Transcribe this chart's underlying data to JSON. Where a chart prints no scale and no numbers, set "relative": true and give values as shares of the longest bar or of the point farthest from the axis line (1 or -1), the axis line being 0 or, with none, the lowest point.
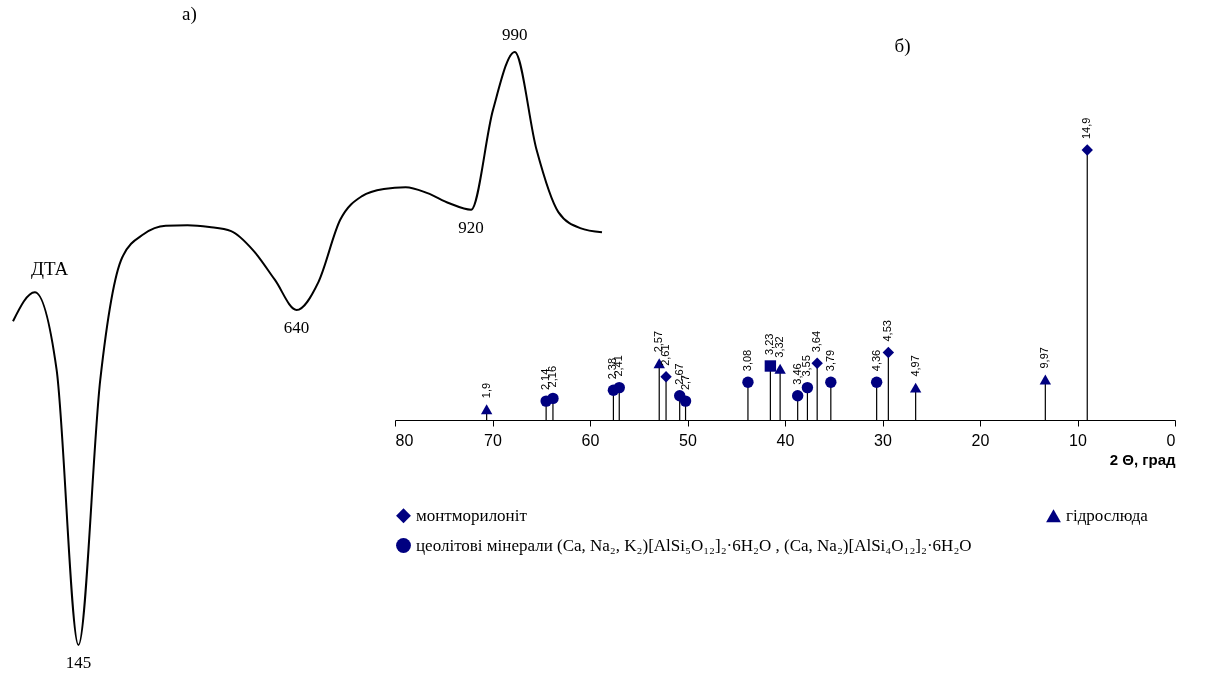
{
  "chart_data": [
    {
      "type": "line",
      "title": "а)",
      "relative": true,
      "categories": [
        null,
        null,
        null,
        null,
        null,
        null,
        null,
        null,
        null,
        null,
        null,
        null,
        null,
        null,
        null,
        null,
        null,
        null,
        null,
        null,
        null,
        null,
        null,
        null,
        null,
        null,
        null,
        null
      ],
      "series": [
        {
          "name": "ДТА",
          "color": "#000000",
          "values": [
            0.546,
            0.595,
            0.464,
            0,
            0.447,
            0.653,
            0.693,
            0.707,
            0.708,
            0.705,
            0.698,
            0.666,
            0.616,
            0.565,
            0.612,
            0.717,
            0.757,
            0.769,
            0.772,
            0.762,
            0.745,
            0.734,
            0.902,
            1,
            0.835,
            0.73,
            0.703,
            0.696
          ]
        }
      ],
      "annotations": [
        {
          "text": "145",
          "y": 0
        },
        {
          "text": "640",
          "y": 0.565
        },
        {
          "text": "920",
          "y": 0.734
        },
        {
          "text": "990",
          "y": 1
        }
      ]
    },
    {
      "type": "lollipop",
      "title": "б)",
      "xlabel": "2 Θ, град",
      "relative": true,
      "xlim": [
        80,
        0
      ],
      "xticks": [
        80,
        70,
        60,
        50,
        40,
        30,
        20,
        10,
        0
      ],
      "legend": "bottom",
      "series": [
        {
          "name": "монтморилоніт",
          "color": "#000080",
          "marker": "diamond",
          "x": [
            52.2,
            36.7,
            29.4,
            9.0
          ],
          "values": [
            0.16,
            0.21,
            0.25,
            1
          ]
        },
        {
          "name": "гідрослюда",
          "color": "#000080",
          "marker": "triangle",
          "x": [
            70.6,
            52.9,
            40.5,
            26.6,
            13.3
          ],
          "values": [
            0.04,
            0.21,
            0.19,
            0.12,
            0.15
          ]
        },
        {
          "name": "цеолітові мінерали   (Ca, Na₂, K₂)[AlSi₅O₁₂]₂·6H₂O ,  (Ca, Na₂)[AlSi₄O₁₂]₂·6H₂O",
          "color": "#000080",
          "marker": "circle",
          "x": [
            64.5,
            63.8,
            57.6,
            57.0,
            50.8,
            50.2,
            43.8,
            38.7,
            37.7,
            35.3,
            30.6
          ],
          "values": [
            0.07,
            0.08,
            0.11,
            0.12,
            0.09,
            0.07,
            0.14,
            0.09,
            0.12,
            0.14,
            0.14
          ]
        },
        {
          "color": "#000080",
          "marker": "square",
          "x": [
            41.5
          ],
          "values": [
            0.2
          ]
        }
      ],
      "annotations": [
        {
          "text": "2,61",
          "x": 52.2,
          "y": 0.16
        },
        {
          "text": "3,64",
          "x": 36.7,
          "y": 0.21
        },
        {
          "text": "4,53",
          "x": 29.4,
          "y": 0.25
        },
        {
          "text": "14,9",
          "x": 9.0,
          "y": 1
        },
        {
          "text": "1,9",
          "x": 70.6,
          "y": 0.04
        },
        {
          "text": "2,57",
          "x": 52.9,
          "y": 0.21
        },
        {
          "text": "3,32",
          "x": 40.5,
          "y": 0.19
        },
        {
          "text": "4,97",
          "x": 26.6,
          "y": 0.12
        },
        {
          "text": "9,97",
          "x": 13.3,
          "y": 0.15
        },
        {
          "text": "2,14",
          "x": 64.5,
          "y": 0.07
        },
        {
          "text": "2,16",
          "x": 63.8,
          "y": 0.08
        },
        {
          "text": "2,38",
          "x": 57.6,
          "y": 0.11
        },
        {
          "text": "2,41",
          "x": 57.0,
          "y": 0.12
        },
        {
          "text": "2,67",
          "x": 50.8,
          "y": 0.09
        },
        {
          "text": "2,7",
          "x": 50.2,
          "y": 0.07
        },
        {
          "text": "3,08",
          "x": 43.8,
          "y": 0.14
        },
        {
          "text": "3,46",
          "x": 38.7,
          "y": 0.09
        },
        {
          "text": "3,55",
          "x": 37.7,
          "y": 0.12
        },
        {
          "text": "3,79",
          "x": 35.3,
          "y": 0.14
        },
        {
          "text": "4,36",
          "x": 30.6,
          "y": 0.14
        },
        {
          "text": "3,23",
          "x": 41.5,
          "y": 0.2
        }
      ]
    }
  ]
}
